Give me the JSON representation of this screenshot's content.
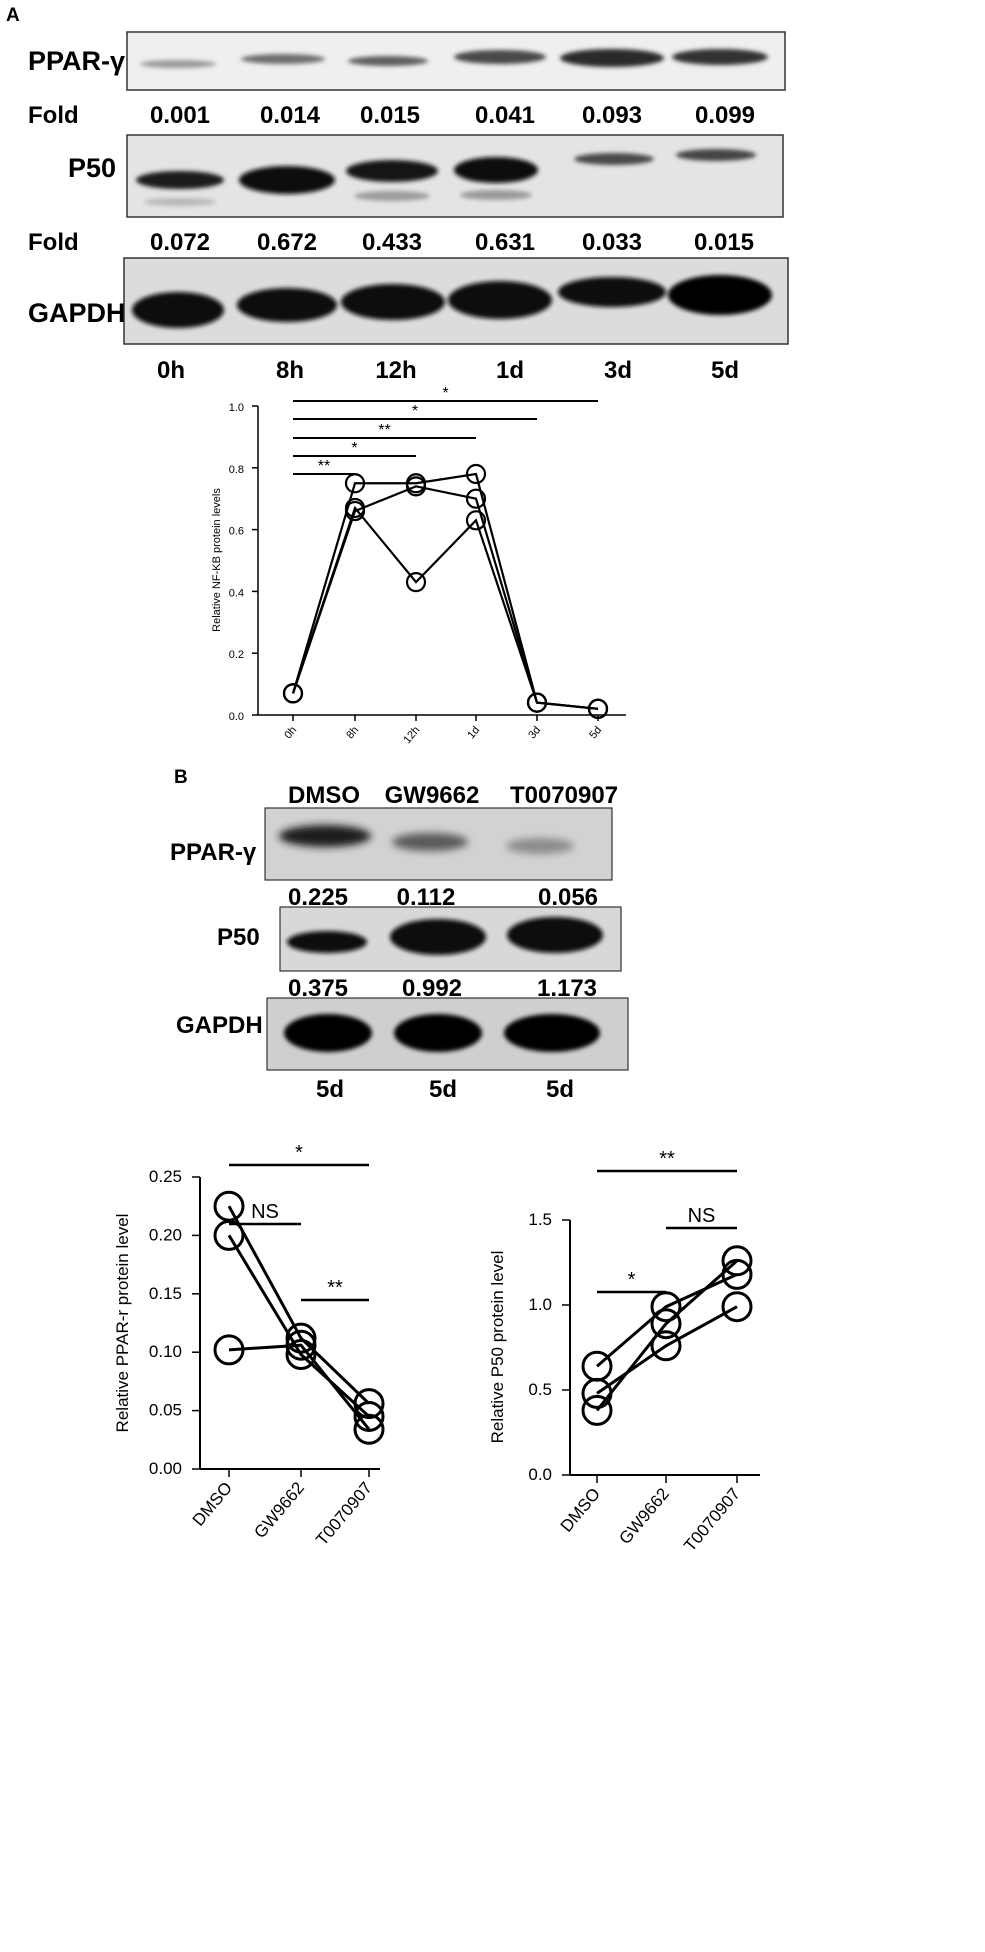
{
  "panels": {
    "a": "A",
    "b": "B"
  },
  "blot_a": {
    "rows": [
      "PPAR-γ",
      "P50",
      "GAPDH"
    ],
    "fold_label": "Fold",
    "fold_ppar": [
      "0.001",
      "0.014",
      "0.015",
      "0.041",
      "0.093",
      "0.099"
    ],
    "fold_p50": [
      "0.072",
      "0.672",
      "0.433",
      "0.631",
      "0.033",
      "0.015"
    ],
    "lanes": [
      "0h",
      "8h",
      "12h",
      "1d",
      "3d",
      "5d"
    ]
  },
  "blot_b": {
    "columns": [
      "DMSO",
      "GW9662",
      "T0070907"
    ],
    "rows": [
      "PPAR-γ",
      "P50",
      "GAPDH"
    ],
    "fold_ppar": [
      "0.225",
      "0.112",
      "0.056"
    ],
    "fold_p50": [
      "0.375",
      "0.992",
      "1.173"
    ],
    "lanes": [
      "5d",
      "5d",
      "5d"
    ]
  },
  "chart_data": [
    {
      "type": "line",
      "ylabel": "Relative NF-KB protein levels",
      "xlabel": "",
      "categories": [
        "0h",
        "8h",
        "12h",
        "1d",
        "3d",
        "5d"
      ],
      "ylim": [
        0,
        1.0
      ],
      "yticks": [
        "0.0",
        "0.2",
        "0.4",
        "0.6",
        "0.8",
        "1.0"
      ],
      "series": [
        {
          "values": [
            0.07,
            0.67,
            0.43,
            0.63,
            0.04,
            0.02
          ]
        },
        {
          "values": [
            0.07,
            0.66,
            0.74,
            0.7,
            0.04,
            0.02
          ]
        },
        {
          "values": [
            0.07,
            0.75,
            0.75,
            0.78,
            0.04,
            0.02
          ]
        }
      ],
      "significance": [
        {
          "from": "0h",
          "to": "8h",
          "label": "**"
        },
        {
          "from": "0h",
          "to": "12h",
          "label": "*"
        },
        {
          "from": "0h",
          "to": "1d",
          "label": "**"
        },
        {
          "from": "0h",
          "to": "3d",
          "label": "*"
        },
        {
          "from": "0h",
          "to": "5d",
          "label": "*"
        }
      ],
      "grid": false
    },
    {
      "type": "line",
      "ylabel": "Relative PPAR-r protein level",
      "xlabel": "",
      "categories": [
        "DMSO",
        "GW9662",
        "T0070907"
      ],
      "ylim": [
        0,
        0.25
      ],
      "yticks": [
        "0.00",
        "0.05",
        "0.10",
        "0.15",
        "0.20",
        "0.25"
      ],
      "series": [
        {
          "values": [
            0.225,
            0.112,
            0.056
          ]
        },
        {
          "values": [
            0.2,
            0.098,
            0.045
          ]
        },
        {
          "values": [
            0.102,
            0.106,
            0.034
          ]
        }
      ],
      "significance": [
        {
          "from": "DMSO",
          "to": "GW9662",
          "label": "NS"
        },
        {
          "from": "DMSO",
          "to": "T0070907",
          "label": "*"
        },
        {
          "from": "GW9662",
          "to": "T0070907",
          "label": "**"
        }
      ],
      "grid": false
    },
    {
      "type": "line",
      "ylabel": "Relative P50 protein level",
      "xlabel": "",
      "categories": [
        "DMSO",
        "GW9662",
        "T0070907"
      ],
      "ylim": [
        0,
        1.5
      ],
      "yticks": [
        "0.0",
        "0.5",
        "1.0",
        "1.5"
      ],
      "series": [
        {
          "values": [
            0.38,
            0.89,
            1.26
          ]
        },
        {
          "values": [
            0.48,
            0.76,
            0.99
          ]
        },
        {
          "values": [
            0.64,
            0.99,
            1.18
          ]
        }
      ],
      "significance": [
        {
          "from": "DMSO",
          "to": "GW9662",
          "label": "*"
        },
        {
          "from": "DMSO",
          "to": "T0070907",
          "label": "**"
        },
        {
          "from": "GW9662",
          "to": "T0070907",
          "label": "NS"
        }
      ],
      "grid": false
    }
  ]
}
